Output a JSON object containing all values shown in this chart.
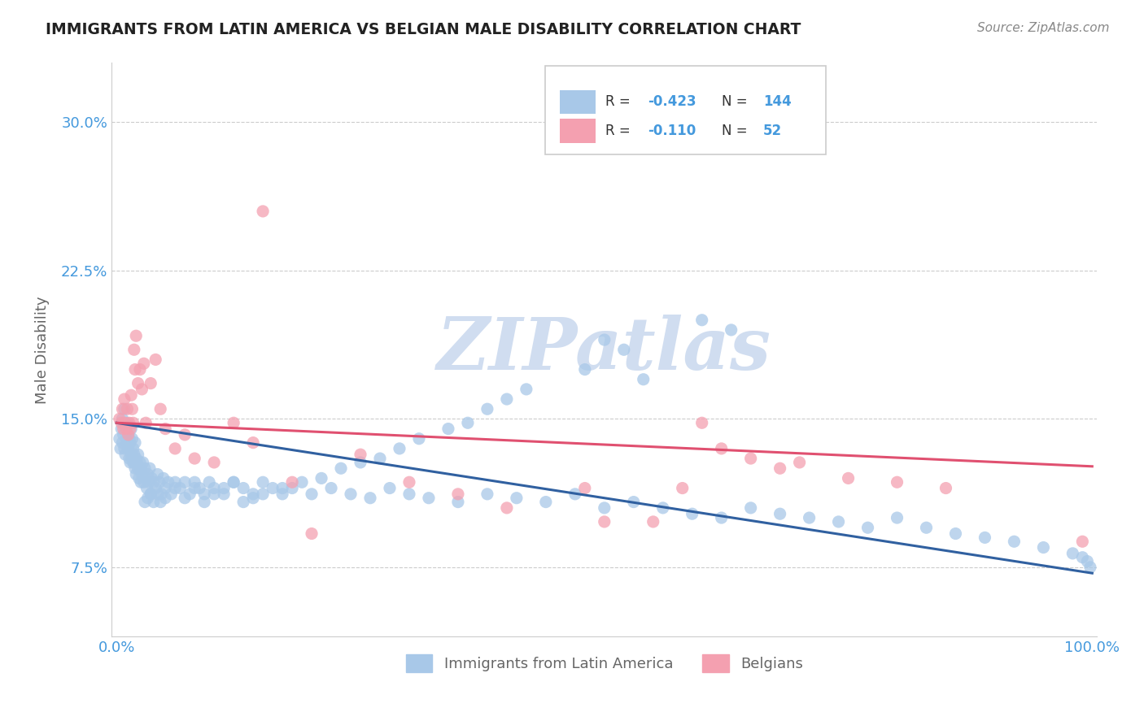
{
  "title": "IMMIGRANTS FROM LATIN AMERICA VS BELGIAN MALE DISABILITY CORRELATION CHART",
  "source_text": "Source: ZipAtlas.com",
  "ylabel": "Male Disability",
  "legend_label_1": "Immigrants from Latin America",
  "legend_label_2": "Belgians",
  "R1": -0.423,
  "N1": 144,
  "R2": -0.11,
  "N2": 52,
  "color_blue": "#a8c8e8",
  "color_pink": "#f4a0b0",
  "color_blue_line": "#3060a0",
  "color_pink_line": "#e05070",
  "color_title": "#222222",
  "color_axis_label": "#666666",
  "color_tick_label": "#4499dd",
  "color_source": "#888888",
  "yticks": [
    0.075,
    0.15,
    0.225,
    0.3
  ],
  "ytick_labels": [
    "7.5%",
    "15.0%",
    "22.5%",
    "30.0%"
  ],
  "ylim": [
    0.04,
    0.33
  ],
  "xlim": [
    -0.005,
    1.005
  ],
  "watermark": "ZIPatlas",
  "watermark_color": "#d0ddf0",
  "background_color": "#ffffff",
  "blue_trend_x0": 0.0,
  "blue_trend_y0": 0.148,
  "blue_trend_x1": 1.0,
  "blue_trend_y1": 0.072,
  "pink_trend_x0": 0.0,
  "pink_trend_y0": 0.148,
  "pink_trend_x1": 1.0,
  "pink_trend_y1": 0.126,
  "blue_x": [
    0.003,
    0.004,
    0.005,
    0.006,
    0.006,
    0.007,
    0.007,
    0.008,
    0.008,
    0.009,
    0.01,
    0.01,
    0.011,
    0.011,
    0.012,
    0.012,
    0.013,
    0.013,
    0.014,
    0.014,
    0.015,
    0.015,
    0.016,
    0.016,
    0.017,
    0.017,
    0.018,
    0.018,
    0.019,
    0.019,
    0.02,
    0.02,
    0.021,
    0.022,
    0.022,
    0.023,
    0.024,
    0.025,
    0.025,
    0.026,
    0.027,
    0.028,
    0.029,
    0.03,
    0.031,
    0.032,
    0.033,
    0.034,
    0.035,
    0.036,
    0.038,
    0.04,
    0.042,
    0.044,
    0.046,
    0.048,
    0.05,
    0.053,
    0.056,
    0.06,
    0.065,
    0.07,
    0.075,
    0.08,
    0.085,
    0.09,
    0.095,
    0.1,
    0.11,
    0.12,
    0.13,
    0.14,
    0.15,
    0.16,
    0.17,
    0.18,
    0.2,
    0.22,
    0.24,
    0.26,
    0.28,
    0.3,
    0.32,
    0.35,
    0.38,
    0.41,
    0.44,
    0.47,
    0.5,
    0.53,
    0.56,
    0.59,
    0.62,
    0.65,
    0.68,
    0.71,
    0.74,
    0.77,
    0.8,
    0.83,
    0.86,
    0.89,
    0.92,
    0.95,
    0.98,
    0.99,
    0.995,
    0.998,
    0.6,
    0.63,
    0.5,
    0.52,
    0.48,
    0.54,
    0.42,
    0.4,
    0.38,
    0.36,
    0.34,
    0.31,
    0.29,
    0.27,
    0.25,
    0.23,
    0.21,
    0.19,
    0.17,
    0.15,
    0.14,
    0.13,
    0.12,
    0.11,
    0.1,
    0.09,
    0.08,
    0.07,
    0.06,
    0.05,
    0.045,
    0.042,
    0.038,
    0.035,
    0.032,
    0.029
  ],
  "blue_y": [
    0.14,
    0.135,
    0.145,
    0.138,
    0.15,
    0.142,
    0.148,
    0.135,
    0.155,
    0.132,
    0.14,
    0.145,
    0.138,
    0.148,
    0.142,
    0.135,
    0.13,
    0.14,
    0.128,
    0.138,
    0.132,
    0.145,
    0.13,
    0.14,
    0.128,
    0.135,
    0.132,
    0.128,
    0.138,
    0.125,
    0.13,
    0.122,
    0.128,
    0.125,
    0.132,
    0.12,
    0.128,
    0.125,
    0.118,
    0.122,
    0.128,
    0.118,
    0.125,
    0.12,
    0.115,
    0.122,
    0.118,
    0.125,
    0.112,
    0.12,
    0.118,
    0.115,
    0.122,
    0.118,
    0.112,
    0.12,
    0.115,
    0.118,
    0.112,
    0.118,
    0.115,
    0.118,
    0.112,
    0.118,
    0.115,
    0.112,
    0.118,
    0.115,
    0.112,
    0.118,
    0.115,
    0.112,
    0.118,
    0.115,
    0.112,
    0.115,
    0.112,
    0.115,
    0.112,
    0.11,
    0.115,
    0.112,
    0.11,
    0.108,
    0.112,
    0.11,
    0.108,
    0.112,
    0.105,
    0.108,
    0.105,
    0.102,
    0.1,
    0.105,
    0.102,
    0.1,
    0.098,
    0.095,
    0.1,
    0.095,
    0.092,
    0.09,
    0.088,
    0.085,
    0.082,
    0.08,
    0.078,
    0.075,
    0.2,
    0.195,
    0.19,
    0.185,
    0.175,
    0.17,
    0.165,
    0.16,
    0.155,
    0.148,
    0.145,
    0.14,
    0.135,
    0.13,
    0.128,
    0.125,
    0.12,
    0.118,
    0.115,
    0.112,
    0.11,
    0.108,
    0.118,
    0.115,
    0.112,
    0.108,
    0.115,
    0.11,
    0.115,
    0.11,
    0.108,
    0.112,
    0.108,
    0.112,
    0.11,
    0.108
  ],
  "pink_x": [
    0.003,
    0.005,
    0.006,
    0.007,
    0.008,
    0.009,
    0.01,
    0.011,
    0.012,
    0.013,
    0.014,
    0.015,
    0.016,
    0.017,
    0.018,
    0.019,
    0.02,
    0.022,
    0.024,
    0.026,
    0.028,
    0.03,
    0.035,
    0.04,
    0.045,
    0.05,
    0.06,
    0.07,
    0.08,
    0.1,
    0.12,
    0.14,
    0.15,
    0.18,
    0.2,
    0.25,
    0.3,
    0.35,
    0.4,
    0.48,
    0.5,
    0.55,
    0.58,
    0.6,
    0.62,
    0.65,
    0.68,
    0.7,
    0.75,
    0.8,
    0.85,
    0.99
  ],
  "pink_y": [
    0.15,
    0.148,
    0.155,
    0.145,
    0.16,
    0.148,
    0.145,
    0.155,
    0.142,
    0.148,
    0.145,
    0.162,
    0.155,
    0.148,
    0.185,
    0.175,
    0.192,
    0.168,
    0.175,
    0.165,
    0.178,
    0.148,
    0.168,
    0.18,
    0.155,
    0.145,
    0.135,
    0.142,
    0.13,
    0.128,
    0.148,
    0.138,
    0.255,
    0.118,
    0.092,
    0.132,
    0.118,
    0.112,
    0.105,
    0.115,
    0.098,
    0.098,
    0.115,
    0.148,
    0.135,
    0.13,
    0.125,
    0.128,
    0.12,
    0.118,
    0.115,
    0.088
  ]
}
